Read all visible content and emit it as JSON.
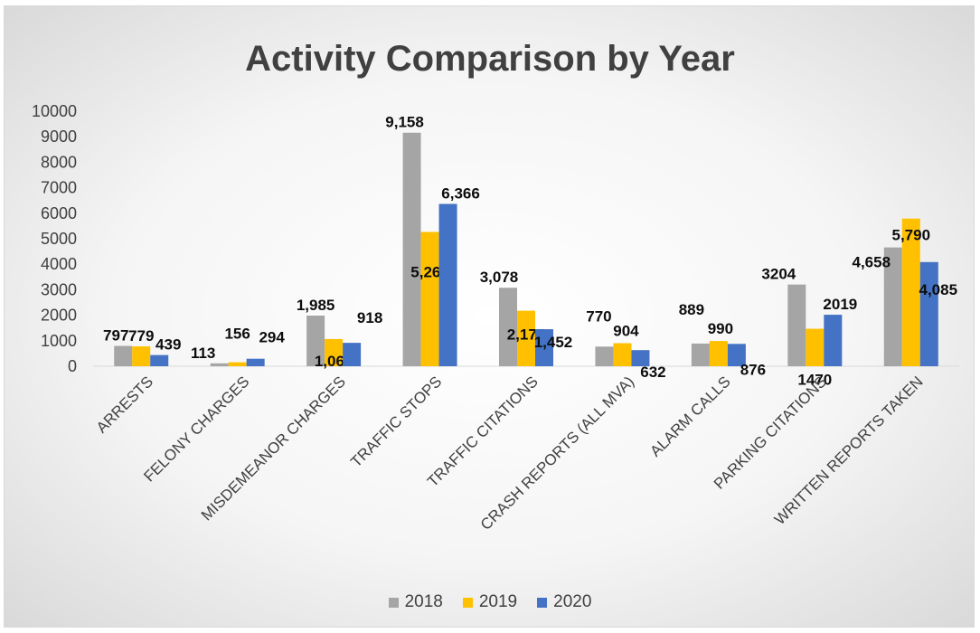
{
  "colors": {
    "2018": "#a5a5a5",
    "2019": "#ffc000",
    "2020": "#4472c4"
  },
  "chart_data": {
    "type": "bar",
    "title": "Activity Comparison by Year",
    "categories": [
      "ARRESTS",
      "FELONY CHARGES",
      "MISDEMEANOR CHARGES",
      "TRAFFIC STOPS",
      "TRAFFIC CITATIONS",
      "CRASH REPORTS (ALL MVA)",
      "ALARM CALLS",
      "PARKING CITATIONS",
      "WRITTEN REPORTS TAKEN"
    ],
    "series": [
      {
        "name": "2018",
        "values": [
          797,
          113,
          1985,
          9158,
          3078,
          770,
          889,
          3204,
          4658
        ],
        "labels": [
          "797",
          "113",
          "1,985",
          "9,158",
          "3,078",
          "770",
          "889",
          "3204",
          "4,658"
        ]
      },
      {
        "name": "2019",
        "values": [
          779,
          156,
          1067,
          5266,
          2177,
          904,
          990,
          1470,
          5790
        ],
        "labels": [
          "779",
          "156",
          "1,067",
          "5,266",
          "2,177",
          "904",
          "990",
          "1470",
          "5,790"
        ]
      },
      {
        "name": "2020",
        "values": [
          439,
          294,
          918,
          6366,
          1452,
          632,
          876,
          2019,
          4085
        ],
        "labels": [
          "439",
          "294",
          "918",
          "6,366",
          "1,452",
          "632",
          "876",
          "2019",
          "4,085"
        ]
      }
    ],
    "ylim": [
      0,
      10000
    ],
    "yticks": [
      0,
      1000,
      2000,
      3000,
      4000,
      5000,
      6000,
      7000,
      8000,
      9000,
      10000
    ],
    "grid": false,
    "legend_position": "bottom"
  }
}
